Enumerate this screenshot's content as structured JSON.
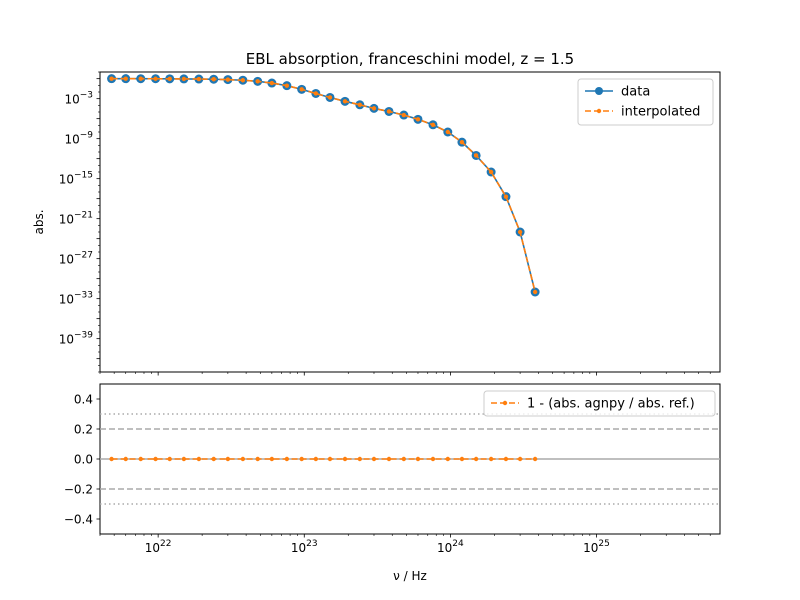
{
  "chart_data": [
    {
      "type": "line",
      "title": "EBL absorption, franceschini model, z = 1.5",
      "xlabel": "",
      "ylabel": "abs.",
      "xscale": "log",
      "yscale": "log",
      "xlim": [
        4e+21,
        7e+25
      ],
      "ylim": [
        1e-44,
        10.0
      ],
      "x_ticks": [
        {
          "base": "10",
          "exp": "22"
        },
        {
          "base": "10",
          "exp": "23"
        },
        {
          "base": "10",
          "exp": "24"
        },
        {
          "base": "10",
          "exp": "25"
        }
      ],
      "y_ticks": [
        {
          "value": -3,
          "base": "10",
          "exp": "−3"
        },
        {
          "value": -9,
          "base": "10",
          "exp": "−9"
        },
        {
          "value": -15,
          "base": "10",
          "exp": "−15"
        },
        {
          "value": -21,
          "base": "10",
          "exp": "−21"
        },
        {
          "value": -27,
          "base": "10",
          "exp": "−27"
        },
        {
          "value": -33,
          "base": "10",
          "exp": "−33"
        },
        {
          "value": -39,
          "base": "10",
          "exp": "−39"
        }
      ],
      "legend_position": "upper-right",
      "series": [
        {
          "name": "data",
          "color": "#1f77b4",
          "style": "solid",
          "marker": "circle",
          "x": [
            4.8e+21,
            6e+21,
            7.6e+21,
            9.6e+21,
            1.2e+22,
            1.5e+22,
            1.9e+22,
            2.4e+22,
            3e+22,
            3.8e+22,
            4.8e+22,
            6e+22,
            7.6e+22,
            9.6e+22,
            1.2e+23,
            1.5e+23,
            1.9e+23,
            2.4e+23,
            3e+23,
            3.8e+23,
            4.8e+23,
            6e+23,
            7.6e+23,
            9.6e+23,
            1.2e+24,
            1.5e+24,
            1.9e+24,
            2.4e+24,
            3e+24,
            3.8e+24
          ],
          "y": [
            1.0,
            1.0,
            0.98,
            0.97,
            0.95,
            0.92,
            0.88,
            0.82,
            0.72,
            0.58,
            0.4,
            0.22,
            0.09,
            0.025,
            0.006,
            0.0015,
            0.0004,
            0.00012,
            3.5e-05,
            1.2e-05,
            3.5e-06,
            8e-07,
            1.2e-07,
            1e-08,
            3e-10,
            3e-12,
            1e-14,
            2e-18,
            1e-23,
            1e-32
          ]
        },
        {
          "name": "interpolated",
          "color": "#ff7f0e",
          "style": "dashed",
          "marker": "dot",
          "x": [
            4.8e+21,
            6e+21,
            7.6e+21,
            9.6e+21,
            1.2e+22,
            1.5e+22,
            1.9e+22,
            2.4e+22,
            3e+22,
            3.8e+22,
            4.8e+22,
            6e+22,
            7.6e+22,
            9.6e+22,
            1.2e+23,
            1.5e+23,
            1.9e+23,
            2.4e+23,
            3e+23,
            3.8e+23,
            4.8e+23,
            6e+23,
            7.6e+23,
            9.6e+23,
            1.2e+24,
            1.5e+24,
            1.9e+24,
            2.4e+24,
            3e+24,
            3.8e+24
          ],
          "y": [
            1.0,
            1.0,
            0.98,
            0.97,
            0.95,
            0.92,
            0.88,
            0.82,
            0.72,
            0.58,
            0.4,
            0.22,
            0.09,
            0.025,
            0.006,
            0.0015,
            0.0004,
            0.00012,
            3.5e-05,
            1.2e-05,
            3.5e-06,
            8e-07,
            1.2e-07,
            1e-08,
            3e-10,
            3e-12,
            1e-14,
            2e-18,
            1e-23,
            1e-32
          ]
        }
      ]
    },
    {
      "type": "line",
      "title": "",
      "xlabel": "ν / Hz",
      "ylabel": "",
      "xscale": "log",
      "yscale": "linear",
      "xlim": [
        4e+21,
        7e+25
      ],
      "ylim": [
        -0.5,
        0.5
      ],
      "y_ticks": [
        {
          "value": 0.4,
          "label": "0.4"
        },
        {
          "value": 0.2,
          "label": "0.2"
        },
        {
          "value": 0.0,
          "label": "0.0"
        },
        {
          "value": -0.2,
          "label": "−0.2"
        },
        {
          "value": -0.4,
          "label": "−0.4"
        }
      ],
      "reference_lines": [
        {
          "y": 0.0,
          "style": "solid",
          "color": "#aaaaaa"
        },
        {
          "y": 0.2,
          "style": "dashed",
          "color": "#aaaaaa"
        },
        {
          "y": -0.2,
          "style": "dashed",
          "color": "#aaaaaa"
        },
        {
          "y": 0.3,
          "style": "dotted",
          "color": "#aaaaaa"
        },
        {
          "y": -0.3,
          "style": "dotted",
          "color": "#aaaaaa"
        }
      ],
      "legend_position": "upper-right",
      "series": [
        {
          "name": "1 - (abs. agnpy / abs. ref.)",
          "color": "#ff7f0e",
          "style": "dashed",
          "marker": "dot",
          "x": [
            4.8e+21,
            6e+21,
            7.6e+21,
            9.6e+21,
            1.2e+22,
            1.5e+22,
            1.9e+22,
            2.4e+22,
            3e+22,
            3.8e+22,
            4.8e+22,
            6e+22,
            7.6e+22,
            9.6e+22,
            1.2e+23,
            1.5e+23,
            1.9e+23,
            2.4e+23,
            3e+23,
            3.8e+23,
            4.8e+23,
            6e+23,
            7.6e+23,
            9.6e+23,
            1.2e+24,
            1.5e+24,
            1.9e+24,
            2.4e+24,
            3e+24,
            3.8e+24
          ],
          "y": [
            0,
            0,
            0,
            0,
            0,
            0,
            0,
            0,
            0,
            0,
            0,
            0,
            0,
            0,
            0,
            0,
            0,
            0,
            0,
            0,
            0,
            0,
            0,
            0,
            0,
            0,
            0,
            0,
            0,
            0
          ]
        }
      ]
    }
  ]
}
